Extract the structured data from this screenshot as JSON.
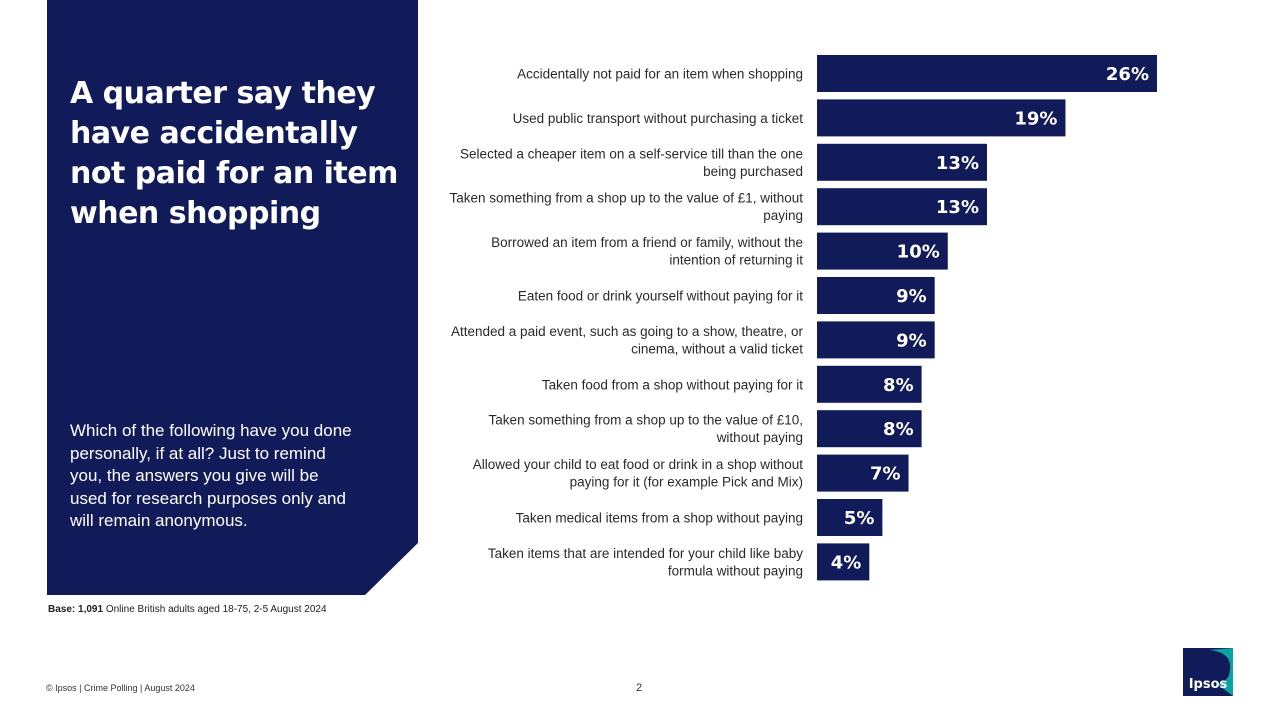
{
  "panel": {
    "headline": "A quarter say they have accidentally not paid for an item when shopping",
    "question": "Which of the following have you done personally, if at all? Just to remind you, the answers you give will be used for research purposes only and will remain anonymous."
  },
  "chart_data": {
    "type": "bar",
    "orientation": "horizontal",
    "categories": [
      [
        "Accidentally not paid for an item when shopping"
      ],
      [
        "Used public transport without purchasing a ticket"
      ],
      [
        "Selected a cheaper item on a self-service till than the one",
        "being purchased"
      ],
      [
        "Taken something from a shop up to the value of £1, without",
        "paying"
      ],
      [
        "Borrowed an item from a friend or family, without the",
        "intention of returning it"
      ],
      [
        "Eaten food or drink yourself without paying for it"
      ],
      [
        "Attended a paid event, such as going to a show, theatre, or",
        "cinema, without a valid ticket"
      ],
      [
        "Taken food from a shop without paying for it"
      ],
      [
        "Taken something from a shop up to the value of £10,",
        "without paying"
      ],
      [
        "Allowed your child to eat food or drink in a shop without",
        "paying for it (for example Pick and Mix)"
      ],
      [
        "Taken medical items from a shop without paying"
      ],
      [
        "Taken items that are intended for your child like baby",
        "formula without paying"
      ]
    ],
    "values": [
      26,
      19,
      13,
      13,
      10,
      9,
      9,
      8,
      8,
      7,
      5,
      4
    ],
    "data_labels": [
      "26%",
      "19%",
      "13%",
      "13%",
      "10%",
      "9%",
      "9%",
      "8%",
      "8%",
      "7%",
      "5%",
      "4%"
    ],
    "xlim": [
      0,
      26
    ],
    "bar_color": "#121b5a",
    "label_color": "#ffffff"
  },
  "base": {
    "label": "Base:",
    "count": "1,091",
    "description": "Online British adults aged 18-75, 2-5 August 2024"
  },
  "footer": {
    "text": "© Ipsos | Crime  Polling | August 2024",
    "page_number": "2"
  },
  "logo": {
    "text": "Ipsos",
    "colors": [
      "#121b5a",
      "#0aa3a3"
    ]
  }
}
